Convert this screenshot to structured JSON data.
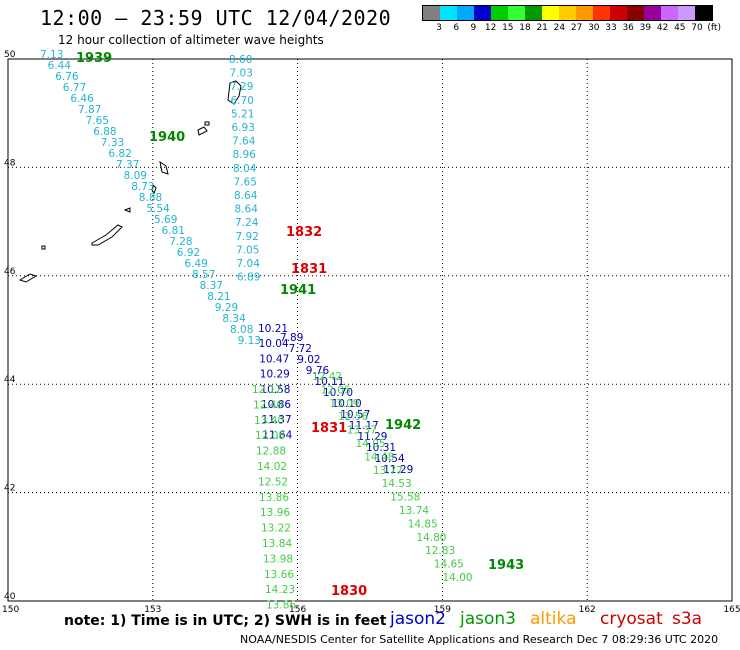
{
  "title": "12:00 — 23:59 UTC 12/04/2020",
  "subtitle": "12 hour collection of altimeter wave heights",
  "legend": {
    "colors": [
      "#808080",
      "#00e5ff",
      "#00a8ff",
      "#0000cc",
      "#00cc00",
      "#33ff33",
      "#009900",
      "#ffff00",
      "#ffcc00",
      "#ff9900",
      "#ff3300",
      "#cc0000",
      "#880000",
      "#990099",
      "#cc66ff",
      "#cc99ff",
      "#000000"
    ],
    "labels": [
      "3",
      "6",
      "9",
      "12",
      "15",
      "18",
      "21",
      "24",
      "27",
      "30",
      "33",
      "36",
      "39",
      "42",
      "45",
      "70",
      "(ft)"
    ]
  },
  "axes": {
    "x_ticks": [
      "150",
      "153",
      "156",
      "159",
      "162",
      "165"
    ],
    "y_ticks": [
      "50",
      "48",
      "46",
      "44",
      "42",
      "40"
    ]
  },
  "time_labels": [
    {
      "text": "1939",
      "color": "#008800"
    },
    {
      "text": "1940",
      "color": "#008800"
    },
    {
      "text": "1832",
      "color": "#dd0000"
    },
    {
      "text": "1831",
      "color": "#dd0000"
    },
    {
      "text": "1941",
      "color": "#008800"
    },
    {
      "text": "1831",
      "color": "#dd0000"
    },
    {
      "text": "1942",
      "color": "#008800"
    },
    {
      "text": "1830",
      "color": "#dd0000"
    },
    {
      "text": "1943",
      "color": "#008800"
    }
  ],
  "tracks": {
    "track_a": {
      "color": "#22b4d0",
      "values": [
        "7.13",
        "6.44",
        "6.76",
        "6.77",
        "6.46",
        "7.87",
        "7.65",
        "6.88",
        "7.33",
        "6.82",
        "7.37",
        "8.09",
        "8.73",
        "8.88",
        "5.54",
        "5.69",
        "6.81",
        "7.28",
        "6.92",
        "6.49",
        "8.57",
        "8.37",
        "8.21",
        "9.29",
        "8.34",
        "8.08",
        "9.13"
      ]
    },
    "track_b": {
      "color": "#22b4d0",
      "values": [
        "8.60",
        "7.03",
        "7.29",
        "6.70",
        "5.21",
        "6.93",
        "7.64",
        "8.96",
        "8.04",
        "7.65",
        "8.64",
        "8.64",
        "7.24",
        "7.92",
        "7.05",
        "7.04",
        "6.89"
      ]
    },
    "track_c": {
      "color": "#0000bb",
      "values": [
        "10.21",
        "10.04",
        "10.47",
        "10.29",
        "10.58",
        "10.86",
        "11.37",
        "11.64"
      ]
    },
    "track_c2": {
      "color": "#44cc44",
      "values": [
        "12.12",
        "12.40",
        "13.40",
        "12.08",
        "12.88",
        "14.02",
        "12.52",
        "13.86",
        "13.96",
        "13.22",
        "13.84",
        "13.98",
        "13.66",
        "14.23",
        "13.86"
      ]
    },
    "track_d": {
      "color": "#0000bb",
      "values": [
        "7.89",
        "7.72",
        "9.02",
        "9.76",
        "10.11",
        "10.70",
        "10.10",
        "10.57",
        "11.17",
        "11.29",
        "10.31",
        "10.54",
        "11.29"
      ]
    },
    "track_d2": {
      "color": "#44cc44",
      "values": [
        "12.42",
        "12.05",
        "13.09",
        "12.56",
        "13.37",
        "14.05",
        "14.48",
        "13.77",
        "14.53",
        "15.58",
        "13.74",
        "14.85",
        "14.80",
        "12.83",
        "14.65",
        "14.00"
      ]
    }
  },
  "note": "note:  1) Time is in UTC;  2) SWH is in feet",
  "satellites": [
    {
      "name": "jason2",
      "color": "#0000cc"
    },
    {
      "name": "jason3",
      "color": "#009900"
    },
    {
      "name": "altika",
      "color": "#ff9900"
    },
    {
      "name": "cryosat",
      "color": "#cc0000"
    },
    {
      "name": "s3a",
      "color": "#cc0000"
    }
  ],
  "credit": "NOAA/NESDIS Center for Satellite Applications and Research    Dec  7 08:29:36 UTC 2020"
}
